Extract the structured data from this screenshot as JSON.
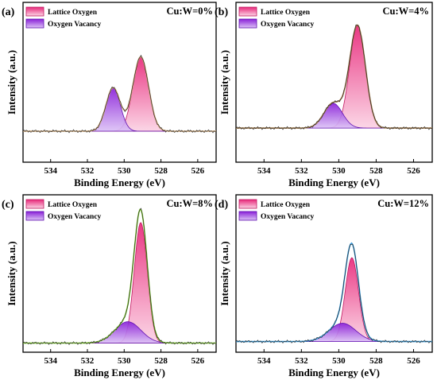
{
  "chart_data": [
    {
      "type": "area",
      "panel": "(a)",
      "ratio_label": "Cu:W=0%",
      "xlabel": "Binding Energy (eV)",
      "ylabel": "Intensity (a.u.)",
      "x_reversed": true,
      "xlim": [
        535.5,
        525.0
      ],
      "xticks": [
        534,
        532,
        530,
        528,
        526
      ],
      "ylim": [
        0,
        1
      ],
      "legend": [
        "Lattice Oxygen",
        "Oxygen Vacancy"
      ],
      "legend_position": "top-left",
      "envelope_color": "#c8a070",
      "baseline": 0.2,
      "series": [
        {
          "name": "Lattice Oxygen",
          "center": 529.1,
          "width": 0.6,
          "height": 0.48,
          "color": "#e8287a"
        },
        {
          "name": "Oxygen Vacancy",
          "center": 530.6,
          "width": 0.55,
          "height": 0.28,
          "color": "#8a20d8"
        }
      ]
    },
    {
      "type": "area",
      "panel": "(b)",
      "ratio_label": "Cu:W=4%",
      "xlabel": "Binding Energy (eV)",
      "ylabel": "Intensity (a.u.)",
      "x_reversed": true,
      "xlim": [
        535.5,
        525.0
      ],
      "xticks": [
        534,
        532,
        530,
        528,
        526
      ],
      "ylim": [
        0,
        1
      ],
      "legend": [
        "Lattice Oxygen",
        "Oxygen Vacancy"
      ],
      "legend_position": "top-left",
      "envelope_color": "#a07848",
      "baseline": 0.22,
      "series": [
        {
          "name": "Lattice Oxygen",
          "center": 529.0,
          "width": 0.6,
          "height": 0.66,
          "color": "#e8287a"
        },
        {
          "name": "Oxygen Vacancy",
          "center": 530.3,
          "width": 0.7,
          "height": 0.16,
          "color": "#8a20d8"
        }
      ]
    },
    {
      "type": "area",
      "panel": "(c)",
      "ratio_label": "Cu:W=8%",
      "xlabel": "Binding Energy (eV)",
      "ylabel": "Intensity (a.u.)",
      "x_reversed": true,
      "xlim": [
        535.5,
        525.0
      ],
      "xticks": [
        534,
        532,
        530,
        528,
        526
      ],
      "ylim": [
        0,
        1
      ],
      "legend": [
        "Lattice Oxygen",
        "Oxygen Vacancy"
      ],
      "legend_position": "top-left",
      "envelope_color": "#7ec830",
      "baseline": 0.06,
      "series": [
        {
          "name": "Lattice Oxygen",
          "center": 529.1,
          "width": 0.5,
          "height": 0.79,
          "color": "#e8287a"
        },
        {
          "name": "Oxygen Vacancy",
          "center": 529.8,
          "width": 1.0,
          "height": 0.14,
          "color": "#8a20d8"
        }
      ]
    },
    {
      "type": "area",
      "panel": "(d)",
      "ratio_label": "Cu:W=12%",
      "xlabel": "Binding Energy (eV)",
      "ylabel": "Intensity (a.u.)",
      "x_reversed": true,
      "xlim": [
        535.5,
        525.0
      ],
      "xticks": [
        534,
        532,
        530,
        528,
        526
      ],
      "ylim": [
        0,
        1
      ],
      "legend": [
        "Lattice Oxygen",
        "Oxygen Vacancy"
      ],
      "legend_position": "top-left",
      "envelope_color": "#3a9ad8",
      "baseline": 0.07,
      "series": [
        {
          "name": "Lattice Oxygen",
          "center": 529.3,
          "width": 0.5,
          "height": 0.55,
          "color": "#e8287a"
        },
        {
          "name": "Oxygen Vacancy",
          "center": 529.8,
          "width": 1.0,
          "height": 0.12,
          "color": "#8a20d8"
        }
      ]
    }
  ]
}
